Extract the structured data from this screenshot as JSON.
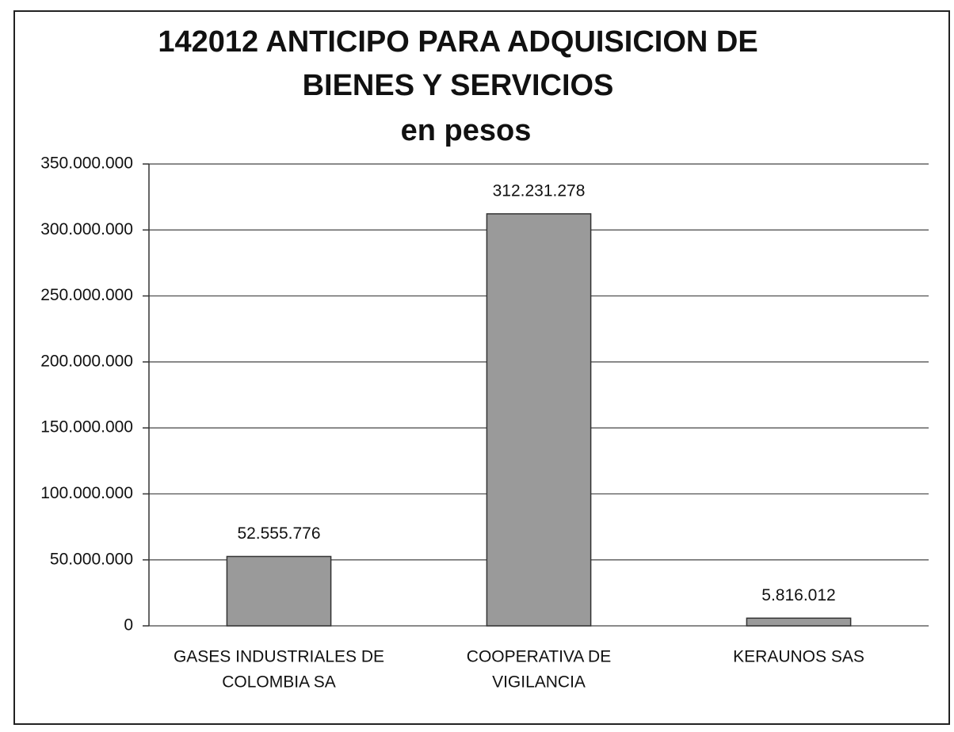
{
  "chart_data": {
    "type": "bar",
    "title": [
      "142012 ANTICIPO PARA ADQUISICION DE",
      "BIENES Y SERVICIOS"
    ],
    "subtitle": "en pesos",
    "categories": [
      [
        "GASES INDUSTRIALES DE",
        "COLOMBIA SA"
      ],
      [
        "COOPERATIVA DE",
        "VIGILANCIA"
      ],
      [
        "KERAUNOS SAS"
      ]
    ],
    "values": [
      52555776,
      312231278,
      5816012
    ],
    "value_labels": [
      "52.555.776",
      "312.231.278",
      "5.816.012"
    ],
    "color": "#9a9a9a",
    "ylim": [
      0,
      350000000
    ],
    "yticks": [
      0,
      {
        "value": 50000000,
        "label": "50.000.000"
      },
      {
        "value": 100000000,
        "label": "100.000.000"
      },
      {
        "value": 150000000,
        "label": "150.000.000"
      },
      {
        "value": 200000000,
        "label": "200.000.000"
      },
      {
        "value": 250000000,
        "label": "250.000.000"
      },
      {
        "value": 300000000,
        "label": "300.000.000"
      },
      {
        "value": 350000000,
        "label": "350.000.000"
      }
    ],
    "grid": true
  }
}
